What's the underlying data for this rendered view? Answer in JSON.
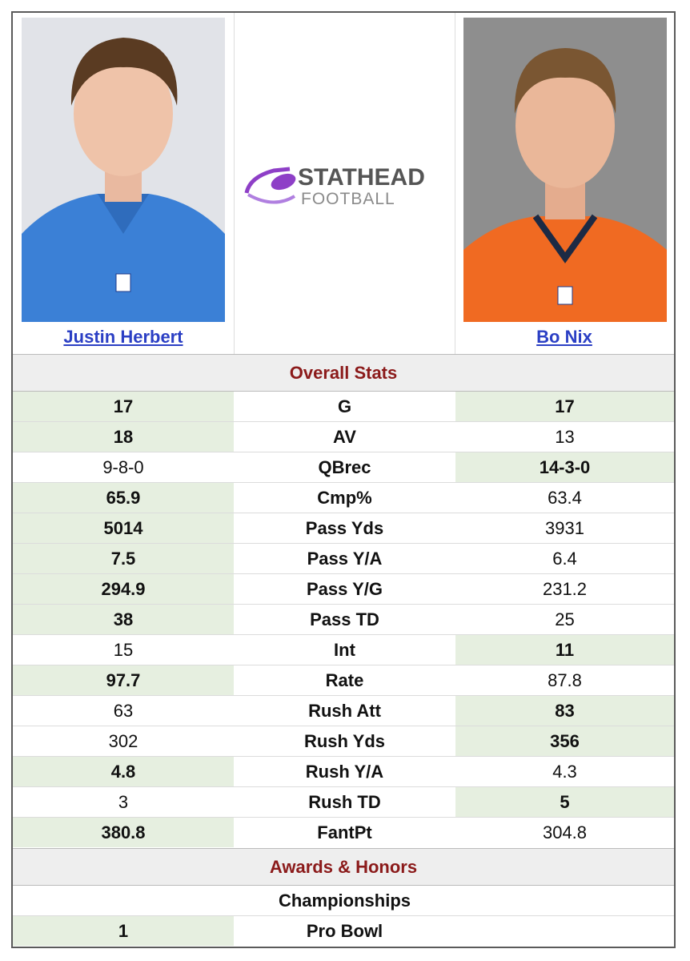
{
  "header": {
    "left_player": "Justin Herbert",
    "right_player": "Bo Nix",
    "logo_top": "STATHEAD",
    "logo_bottom": "FOOTBALL"
  },
  "sections": [
    {
      "title": "Overall Stats",
      "rows": [
        {
          "label": "G",
          "left": 17,
          "right": 17,
          "highlight": "both"
        },
        {
          "label": "AV",
          "left": 18,
          "right": 13,
          "highlight": "left"
        },
        {
          "label": "QBrec",
          "left": "9-8-0",
          "right": "14-3-0",
          "highlight": "right"
        },
        {
          "label": "Cmp%",
          "left": 65.9,
          "right": 63.4,
          "highlight": "left"
        },
        {
          "label": "Pass Yds",
          "left": 5014,
          "right": 3931,
          "highlight": "left"
        },
        {
          "label": "Pass Y/A",
          "left": 7.5,
          "right": 6.4,
          "highlight": "left"
        },
        {
          "label": "Pass Y/G",
          "left": 294.9,
          "right": 231.2,
          "highlight": "left"
        },
        {
          "label": "Pass TD",
          "left": 38,
          "right": 25,
          "highlight": "left"
        },
        {
          "label": "Int",
          "left": 15,
          "right": 11,
          "highlight": "right"
        },
        {
          "label": "Rate",
          "left": 97.7,
          "right": 87.8,
          "highlight": "left"
        },
        {
          "label": "Rush Att",
          "left": 63,
          "right": 83,
          "highlight": "right"
        },
        {
          "label": "Rush Yds",
          "left": 302,
          "right": 356,
          "highlight": "right"
        },
        {
          "label": "Rush Y/A",
          "left": 4.8,
          "right": 4.3,
          "highlight": "left"
        },
        {
          "label": "Rush TD",
          "left": 3,
          "right": 5,
          "highlight": "right"
        },
        {
          "label": "FantPt",
          "left": 380.8,
          "right": 304.8,
          "highlight": "left"
        }
      ]
    },
    {
      "title": "Awards & Honors",
      "rows": [
        {
          "label": "Championships"
        },
        {
          "label": "Pro Bowl",
          "left": 1,
          "highlight": "left"
        }
      ]
    }
  ]
}
